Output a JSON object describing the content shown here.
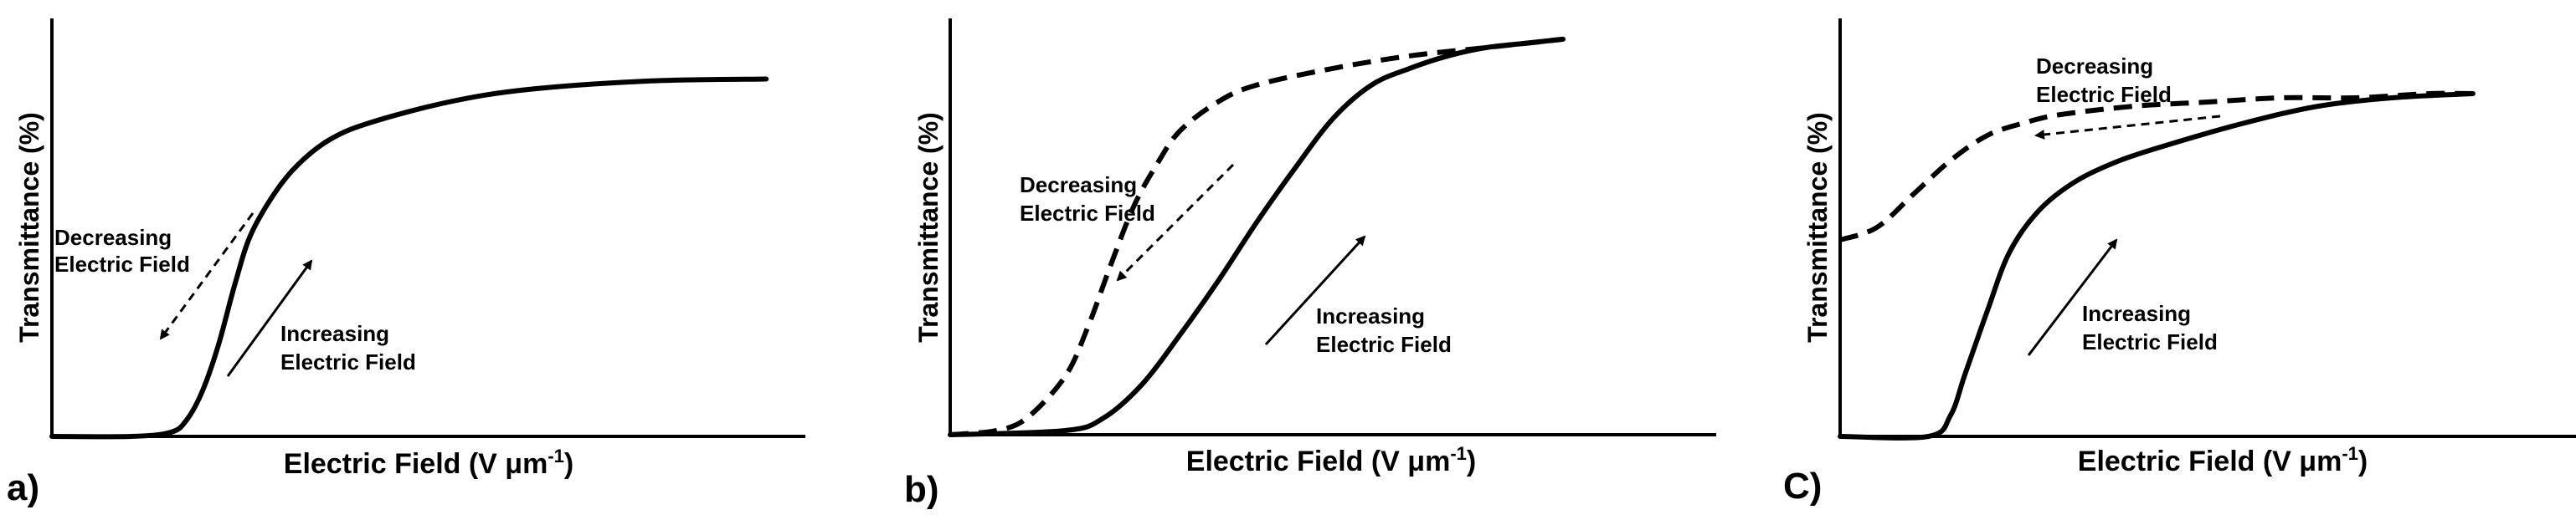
{
  "chart_data": [
    {
      "type": "line",
      "panel_label": "a)",
      "title": "",
      "xlabel": "Electric Field (V μm",
      "xlabel_sup": "-1",
      "xlabel_close": ")",
      "ylabel": "Transmittance (%)",
      "xlim": [
        0,
        1
      ],
      "ylim": [
        0,
        1
      ],
      "ticks": "none",
      "series": [
        {
          "name": "Increasing / Decreasing Electric Field",
          "style": "solid",
          "x": [
            0,
            0.1,
            0.15,
            0.17,
            0.19,
            0.21,
            0.23,
            0.25,
            0.28,
            0.31,
            0.35,
            0.4,
            0.5,
            0.6,
            0.75,
            0.9
          ],
          "y": [
            0,
            0,
            0.01,
            0.04,
            0.11,
            0.22,
            0.36,
            0.48,
            0.58,
            0.65,
            0.71,
            0.75,
            0.8,
            0.83,
            0.85,
            0.855
          ]
        }
      ],
      "annotations": [
        {
          "line1": "Decreasing",
          "line2": "Electric Field",
          "arrow": "dashed",
          "direction": "down-left"
        },
        {
          "line1": "Increasing",
          "line2": "Electric Field",
          "arrow": "solid",
          "direction": "up-right"
        }
      ]
    },
    {
      "type": "line",
      "panel_label": "b)",
      "title": "",
      "xlabel": "Electric Field (V μm",
      "xlabel_sup": "-1",
      "xlabel_close": ")",
      "ylabel": "Transmittance (%)",
      "xlim": [
        0,
        1
      ],
      "ylim": [
        0,
        1
      ],
      "ticks": "none",
      "series": [
        {
          "name": "Increasing Electric Field",
          "style": "solid",
          "x": [
            0,
            0.15,
            0.2,
            0.25,
            0.3,
            0.35,
            0.4,
            0.45,
            0.5,
            0.55,
            0.6,
            0.65,
            0.7,
            0.75,
            0.8
          ],
          "y": [
            0,
            0.01,
            0.04,
            0.12,
            0.24,
            0.37,
            0.51,
            0.64,
            0.76,
            0.84,
            0.88,
            0.91,
            0.93,
            0.94,
            0.95
          ]
        },
        {
          "name": "Decreasing Electric Field",
          "style": "dashed",
          "x": [
            0,
            0.06,
            0.1,
            0.15,
            0.18,
            0.21,
            0.24,
            0.27,
            0.3,
            0.35,
            0.4,
            0.5,
            0.6,
            0.7,
            0.8
          ],
          "y": [
            0,
            0.01,
            0.04,
            0.14,
            0.26,
            0.41,
            0.55,
            0.65,
            0.73,
            0.8,
            0.84,
            0.88,
            0.91,
            0.93,
            0.95
          ]
        }
      ],
      "annotations": [
        {
          "line1": "Decreasing",
          "line2": "Electric Field",
          "arrow": "dashed",
          "direction": "down-left"
        },
        {
          "line1": "Increasing",
          "line2": "Electric Field",
          "arrow": "solid",
          "direction": "up-right"
        }
      ]
    },
    {
      "type": "line",
      "panel_label": "C)",
      "title": "",
      "xlabel": "Electric Field (V μm",
      "xlabel_sup": "-1",
      "xlabel_close": ")",
      "ylabel": "Transmittance (%)",
      "xlim": [
        0,
        1
      ],
      "ylim": [
        0,
        1
      ],
      "ticks": "none",
      "series": [
        {
          "name": "Increasing Electric Field",
          "style": "solid",
          "x": [
            0,
            0.12,
            0.15,
            0.17,
            0.2,
            0.23,
            0.27,
            0.32,
            0.38,
            0.45,
            0.55,
            0.65,
            0.75,
            0.86
          ],
          "y": [
            0,
            0,
            0.05,
            0.15,
            0.3,
            0.44,
            0.54,
            0.61,
            0.66,
            0.7,
            0.75,
            0.79,
            0.81,
            0.82
          ]
        },
        {
          "name": "Decreasing Electric Field",
          "style": "dashed",
          "x": [
            0,
            0.05,
            0.1,
            0.15,
            0.2,
            0.25,
            0.3,
            0.4,
            0.5,
            0.6,
            0.7,
            0.8,
            0.86
          ],
          "y": [
            0.47,
            0.5,
            0.58,
            0.66,
            0.72,
            0.75,
            0.77,
            0.79,
            0.8,
            0.81,
            0.81,
            0.82,
            0.82
          ]
        }
      ],
      "annotations": [
        {
          "line1": "Decreasing",
          "line2": "Electric Field",
          "arrow": "dashed",
          "direction": "left"
        },
        {
          "line1": "Increasing",
          "line2": "Electric Field",
          "arrow": "solid",
          "direction": "up-right"
        }
      ]
    }
  ]
}
